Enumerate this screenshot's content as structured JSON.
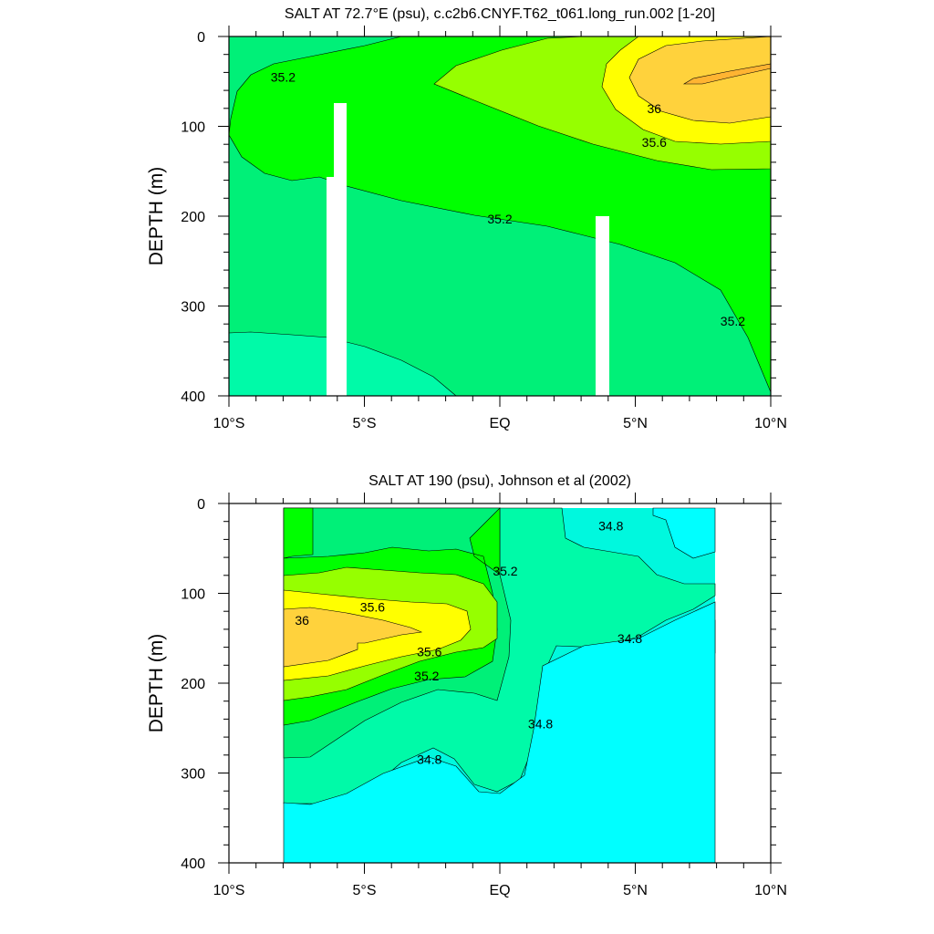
{
  "chart_data": [
    {
      "type": "contour",
      "title": "SALT AT  72.7°E (psu), c.c2b6.CNYF.T62_t061.long_run.002 [1-20]",
      "ylabel": "DEPTH (m)",
      "xlabel": "",
      "xlim": [
        -10,
        10
      ],
      "ylim": [
        400,
        0
      ],
      "x_ticks": [
        {
          "value": -10,
          "label": "10°S"
        },
        {
          "value": -5,
          "label": "5°S"
        },
        {
          "value": 0,
          "label": "EQ"
        },
        {
          "value": 5,
          "label": "5°N"
        },
        {
          "value": 10,
          "label": "10°N"
        }
      ],
      "y_ticks": [
        0,
        100,
        200,
        300,
        400
      ],
      "contour_levels": [
        34.6,
        34.8,
        35.0,
        35.2,
        35.4,
        35.6,
        35.8,
        36.0,
        36.2
      ],
      "contour_labels": [
        {
          "x": -8.0,
          "y": 45,
          "text": "35.2"
        },
        {
          "x": 5.7,
          "y": 80,
          "text": "36"
        },
        {
          "x": 5.7,
          "y": 118,
          "text": "35.6"
        },
        {
          "x": 0.0,
          "y": 203,
          "text": "35.2"
        },
        {
          "x": 8.6,
          "y": 317,
          "text": "35.2"
        }
      ],
      "masked_columns": [
        {
          "x": [
            -6.3,
            -5.8
          ],
          "depth_from": 158
        },
        {
          "x": [
            -5.8,
            -5.3
          ],
          "depth_from": 74
        },
        {
          "x": [
            3.6,
            4.1
          ],
          "depth_from": 200
        }
      ],
      "grid": false,
      "legend": "none"
    },
    {
      "type": "contour",
      "title": "SALT AT 190 (psu), Johnson et al (2002)",
      "ylabel": "DEPTH (m)",
      "xlabel": "",
      "xlim": [
        -10,
        10
      ],
      "ylim": [
        400,
        0
      ],
      "x_ticks": [
        {
          "value": -10,
          "label": "10°S"
        },
        {
          "value": -5,
          "label": "5°S"
        },
        {
          "value": 0,
          "label": "EQ"
        },
        {
          "value": 5,
          "label": "5°N"
        },
        {
          "value": 10,
          "label": "10°N"
        }
      ],
      "y_ticks": [
        0,
        100,
        200,
        300,
        400
      ],
      "data_extent_x": [
        -8,
        8
      ],
      "data_extent_depth": [
        5,
        400
      ],
      "contour_levels": [
        34.6,
        34.8,
        35.0,
        35.2,
        35.4,
        35.6,
        35.8,
        36.0,
        36.2
      ],
      "contour_labels": [
        {
          "x": -4.7,
          "y": 115,
          "text": "35.6"
        },
        {
          "x": -7.3,
          "y": 130,
          "text": "36"
        },
        {
          "x": -2.6,
          "y": 165,
          "text": "35.6"
        },
        {
          "x": -2.7,
          "y": 192,
          "text": "35.2"
        },
        {
          "x": 0.2,
          "y": 75,
          "text": "35.2"
        },
        {
          "x": 4.1,
          "y": 25,
          "text": "34.8"
        },
        {
          "x": 4.8,
          "y": 150,
          "text": "34.8"
        },
        {
          "x": 1.5,
          "y": 245,
          "text": "34.8"
        },
        {
          "x": -2.6,
          "y": 285,
          "text": "34.8"
        }
      ],
      "grid": false,
      "legend": "none"
    }
  ],
  "colors": {
    "s34_6_34_8": "#00f8de",
    "s34_8_35_0": "#00faa8",
    "s35_0_35_2": "#00f078",
    "s35_2_35_4": "#00ff00",
    "s35_4_35_6": "#96ff00",
    "s35_6_35_8": "#ffff00",
    "s35_8_36_0": "#ffd23c",
    "s36_0_36_2": "#ffb432",
    "s_lt_34_6": "#00ffff",
    "mask": "#ffffff",
    "contour_line": "#000000"
  }
}
